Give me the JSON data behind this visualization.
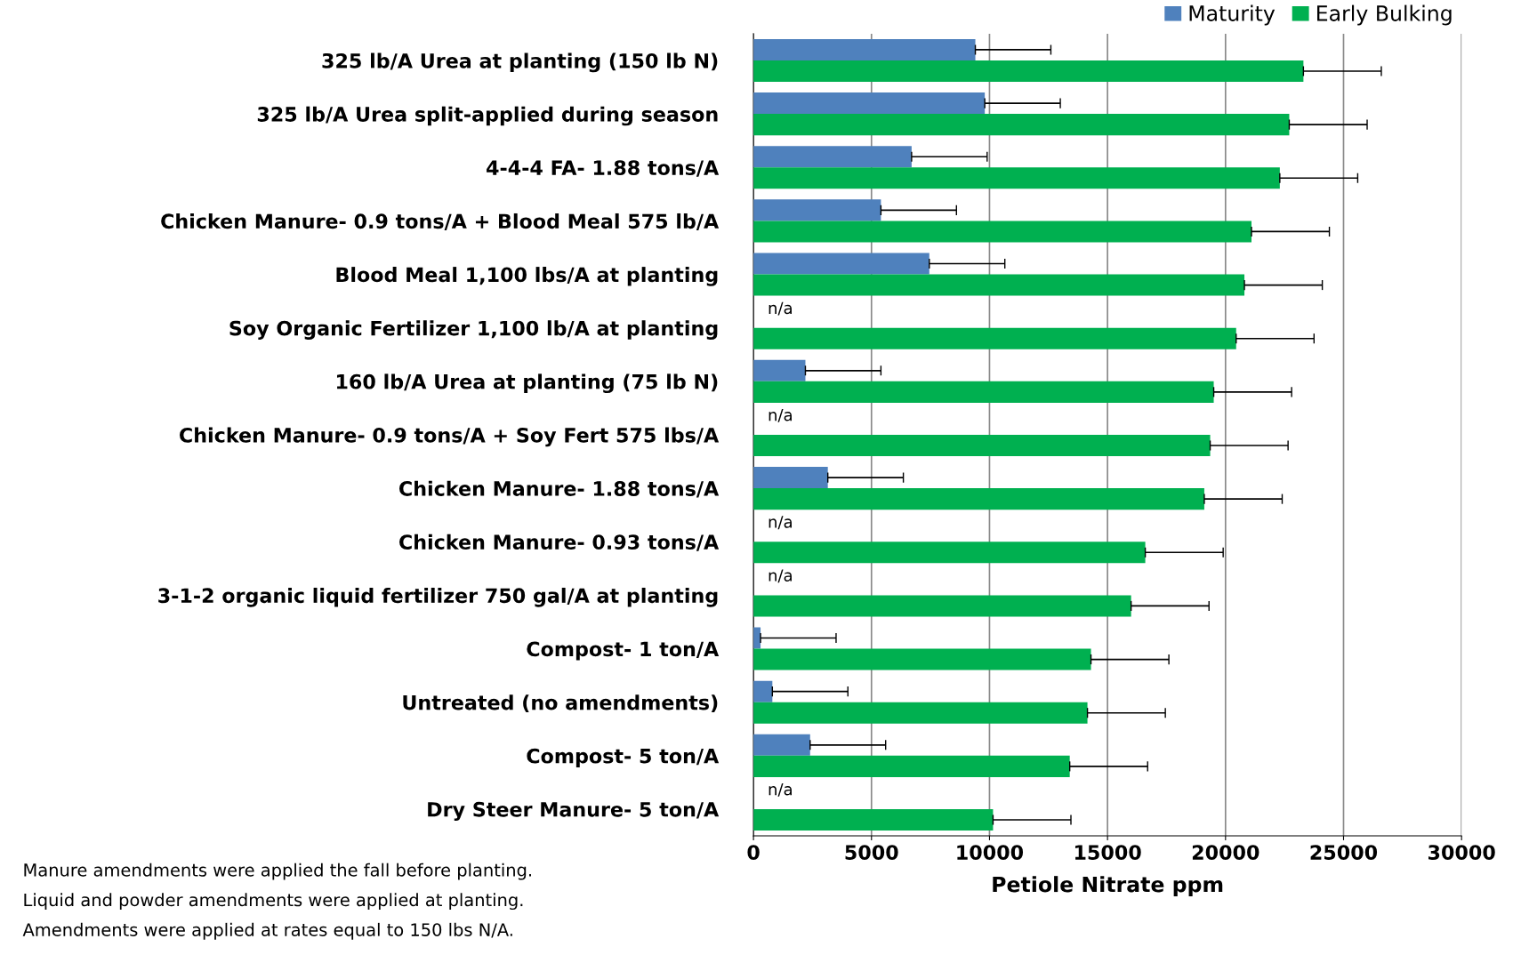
{
  "chart_data": {
    "type": "bar",
    "orientation": "horizontal",
    "xlabel": "Petiole Nitrate ppm",
    "categories": [
      "325 lb/A Urea at planting (150 lb N)",
      "325 lb/A Urea split-applied during season",
      "4-4-4 FA- 1.88 tons/A",
      "Chicken Manure- 0.9 tons/A + Blood Meal 575 lb/A",
      "Blood Meal 1,100 lbs/A at planting",
      "Soy Organic Fertilizer 1,100 lb/A at planting",
      "160 lb/A Urea at planting (75 lb N)",
      "Chicken Manure- 0.9 tons/A + Soy Fert 575 lbs/A",
      "Chicken Manure- 1.88 tons/A",
      "Chicken Manure- 0.93 tons/A",
      "3-1-2 organic liquid fertilizer 750 gal/A at planting",
      "Compost- 1 ton/A",
      "Untreated (no amendments)",
      "Compost- 5 ton/A",
      "Dry Steer Manure- 5 ton/A"
    ],
    "series": [
      {
        "name": "Maturity",
        "color": "#4f81bd",
        "values": [
          9400,
          9800,
          6700,
          5400,
          7450,
          null,
          2200,
          null,
          3150,
          null,
          null,
          300,
          800,
          2400,
          null
        ],
        "errors": [
          3200,
          3200,
          3200,
          3200,
          3200,
          null,
          3200,
          null,
          3200,
          null,
          null,
          3200,
          3200,
          3200,
          null
        ],
        "value_labels": [
          null,
          null,
          null,
          null,
          null,
          "n/a",
          null,
          "n/a",
          null,
          "n/a",
          "n/a",
          null,
          null,
          null,
          "n/a"
        ]
      },
      {
        "name": "Early Bulking",
        "color": "#00b050",
        "values": [
          23300,
          22700,
          22300,
          21100,
          20800,
          20450,
          19500,
          19350,
          19100,
          16600,
          16000,
          14300,
          14150,
          13400,
          10150
        ],
        "errors": [
          3300,
          3300,
          3300,
          3300,
          3300,
          3300,
          3300,
          3300,
          3300,
          3300,
          3300,
          3300,
          3300,
          3300,
          3300
        ]
      }
    ],
    "xlim": [
      0,
      30000
    ],
    "xticks": [
      0,
      5000,
      10000,
      15000,
      20000,
      25000,
      30000
    ],
    "grid": "x",
    "legend": "top right",
    "annotations": [
      "Manure amendments were applied the fall before planting.",
      "Liquid and powder amendments were applied at planting.",
      "Amendments were applied at rates equal to 150 lbs N/A."
    ]
  }
}
